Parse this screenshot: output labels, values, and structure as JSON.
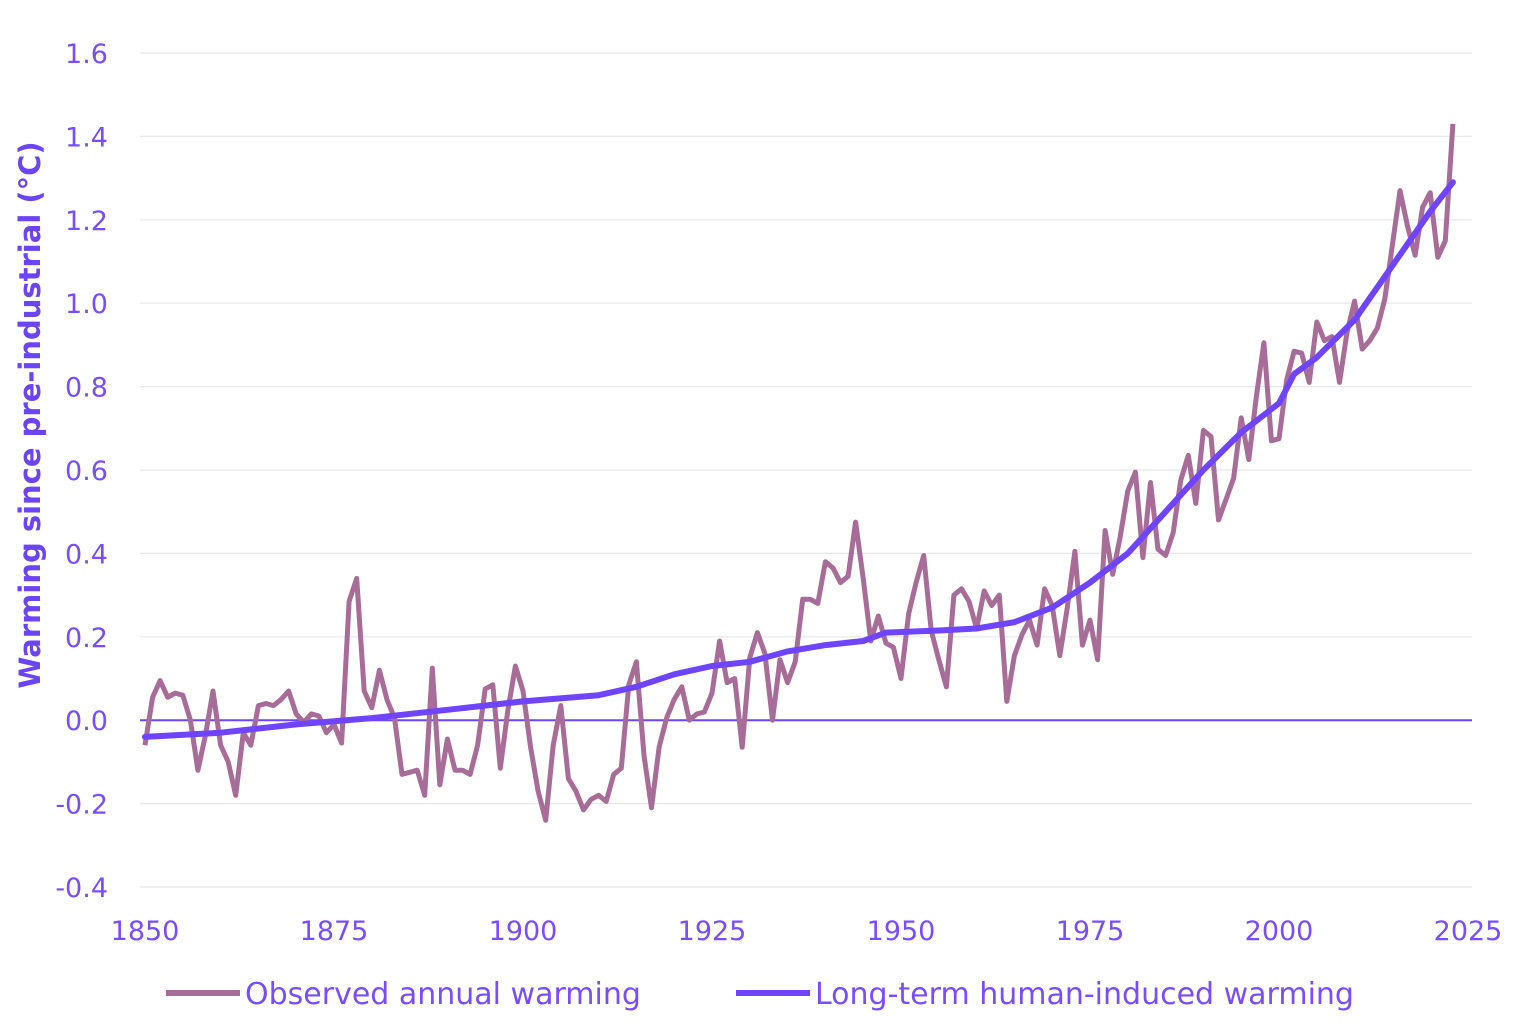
{
  "chart_data": {
    "type": "line",
    "title": "",
    "xlabel": "",
    "ylabel": "Warming since pre-industrial (°C)",
    "xlim": [
      1850,
      2025
    ],
    "ylim": [
      -0.4,
      1.6
    ],
    "xticks": [
      "1850",
      "1875",
      "1900",
      "1925",
      "1950",
      "1975",
      "2000",
      "2025"
    ],
    "yticks": [
      "-0.4",
      "-0.2",
      "0.0",
      "0.2",
      "0.4",
      "0.6",
      "0.8",
      "1.0",
      "1.2",
      "1.4",
      "1.6"
    ],
    "grid": true,
    "legend_position": "bottom",
    "zero_line_color": "#6e44ff",
    "series": [
      {
        "name": "Observed annual warming",
        "color": "#a86c98",
        "start_year": 1850,
        "values": [
          -0.06,
          0.055,
          0.095,
          0.055,
          0.065,
          0.06,
          0,
          -0.12,
          -0.035,
          0.07,
          -0.06,
          -0.1,
          -0.18,
          -0.03,
          -0.06,
          0.035,
          0.04,
          0.035,
          0.05,
          0.07,
          0.015,
          -0.005,
          0.015,
          0.01,
          -0.03,
          -0.01,
          -0.055,
          0.285,
          0.34,
          0.07,
          0.03,
          0.12,
          0.05,
          0.005,
          -0.13,
          -0.125,
          -0.12,
          -0.18,
          0.125,
          -0.155,
          -0.045,
          -0.12,
          -0.12,
          -0.13,
          -0.06,
          0.075,
          0.085,
          -0.115,
          0.025,
          0.13,
          0.07,
          -0.065,
          -0.17,
          -0.24,
          -0.06,
          0.035,
          -0.14,
          -0.17,
          -0.215,
          -0.19,
          -0.18,
          -0.195,
          -0.13,
          -0.115,
          0.085,
          0.14,
          -0.085,
          -0.21,
          -0.065,
          0.005,
          0.05,
          0.08,
          0,
          0.015,
          0.02,
          0.065,
          0.19,
          0.09,
          0.1,
          -0.065,
          0.15,
          0.21,
          0.16,
          0,
          0.145,
          0.09,
          0.14,
          0.29,
          0.29,
          0.28,
          0.38,
          0.365,
          0.33,
          0.345,
          0.475,
          0.34,
          0.19,
          0.25,
          0.185,
          0.175,
          0.1,
          0.255,
          0.33,
          0.395,
          0.215,
          0.145,
          0.08,
          0.3,
          0.315,
          0.285,
          0.22,
          0.31,
          0.275,
          0.3,
          0.045,
          0.155,
          0.205,
          0.24,
          0.18,
          0.315,
          0.275,
          0.155,
          0.27,
          0.405,
          0.18,
          0.24,
          0.145,
          0.455,
          0.35,
          0.44,
          0.55,
          0.595,
          0.39,
          0.57,
          0.41,
          0.395,
          0.45,
          0.575,
          0.635,
          0.52,
          0.695,
          0.68,
          0.48,
          0.53,
          0.58,
          0.725,
          0.625,
          0.775,
          0.905,
          0.67,
          0.675,
          0.815,
          0.885,
          0.88,
          0.81,
          0.955,
          0.91,
          0.92,
          0.81,
          0.93,
          1.005,
          0.89,
          0.91,
          0.94,
          1.01,
          1.14,
          1.27,
          1.185,
          1.115,
          1.23,
          1.265,
          1.11,
          1.15,
          1.43
        ]
      },
      {
        "name": "Long-term human-induced warming",
        "color": "#6e44ff",
        "x": [
          1850,
          1860,
          1870,
          1880,
          1890,
          1900,
          1910,
          1915,
          1920,
          1925,
          1930,
          1935,
          1940,
          1945,
          1948,
          1955,
          1960,
          1965,
          1970,
          1975,
          1980,
          1985,
          1990,
          1995,
          2000,
          2002,
          2005,
          2010,
          2015,
          2020,
          2023
        ],
        "values": [
          -0.04,
          -0.03,
          -0.01,
          0.005,
          0.025,
          0.045,
          0.06,
          0.08,
          0.11,
          0.13,
          0.14,
          0.165,
          0.18,
          0.19,
          0.21,
          0.215,
          0.22,
          0.235,
          0.27,
          0.33,
          0.4,
          0.5,
          0.6,
          0.69,
          0.76,
          0.83,
          0.87,
          0.96,
          1.09,
          1.22,
          1.29
        ]
      }
    ]
  }
}
